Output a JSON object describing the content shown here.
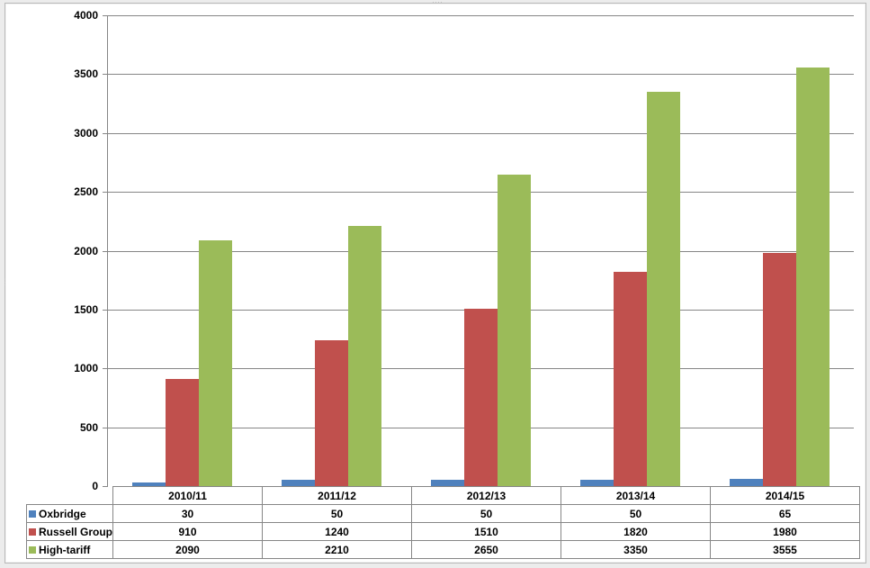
{
  "chart_data": {
    "type": "bar",
    "title": "",
    "xlabel": "",
    "ylabel": "",
    "ylim": [
      0,
      4000
    ],
    "yticks": [
      0,
      500,
      1000,
      1500,
      2000,
      2500,
      3000,
      3500,
      4000
    ],
    "grid": true,
    "legend_position": "data-table",
    "categories": [
      "2010/11",
      "2011/12",
      "2012/13",
      "2013/14",
      "2014/15"
    ],
    "series": [
      {
        "name": "Oxbridge",
        "color": "#4f81bd",
        "values": [
          30,
          50,
          50,
          50,
          65
        ]
      },
      {
        "name": "Russell Group",
        "color": "#c0504d",
        "values": [
          910,
          1240,
          1510,
          1820,
          1980
        ]
      },
      {
        "name": "High-tariff",
        "color": "#9bbb59",
        "values": [
          2090,
          2210,
          2650,
          3350,
          3555
        ]
      }
    ]
  },
  "yaxis_labels": [
    "4000",
    "3500",
    "3000",
    "2500",
    "2000",
    "1500",
    "1000",
    "500",
    "0"
  ],
  "table": {
    "headers": [
      "2010/11",
      "2011/12",
      "2012/13",
      "2013/14",
      "2014/15"
    ],
    "rows": [
      {
        "label": "Oxbridge",
        "values": [
          "30",
          "50",
          "50",
          "50",
          "65"
        ]
      },
      {
        "label": "Russell Group",
        "values": [
          "910",
          "1240",
          "1510",
          "1820",
          "1980"
        ]
      },
      {
        "label": "High-tariff",
        "values": [
          "2090",
          "2210",
          "2650",
          "3350",
          "3555"
        ]
      }
    ]
  }
}
